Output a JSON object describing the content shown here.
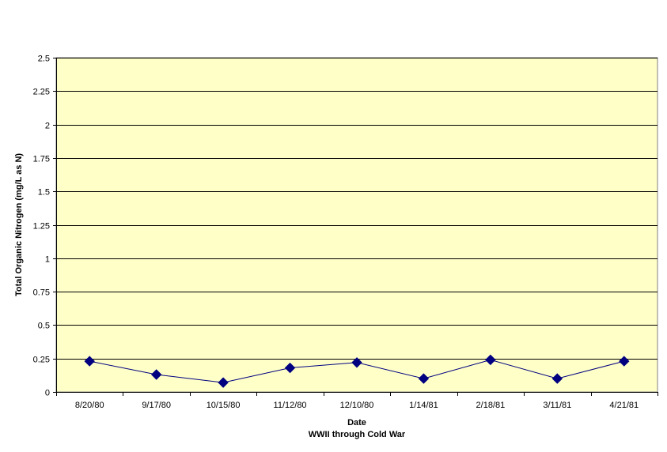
{
  "chart_data": {
    "type": "line",
    "title": "",
    "xlabel": "Date",
    "subtitle": "WWII through Cold War",
    "ylabel": "Total Organic Nitrogen (mg/L as N)",
    "ylim": [
      0,
      2.5
    ],
    "yticks": [
      "0",
      "0.25",
      "0.5",
      "0.75",
      "1",
      "1.25",
      "1.5",
      "1.75",
      "2",
      "2.25",
      "2.5"
    ],
    "categories": [
      "8/20/80",
      "9/17/80",
      "10/15/80",
      "11/12/80",
      "12/10/80",
      "1/14/81",
      "2/18/81",
      "3/11/81",
      "4/21/81"
    ],
    "series": [
      {
        "values": [
          0.23,
          0.13,
          0.07,
          0.18,
          0.22,
          0.1,
          0.24,
          0.1,
          0.23
        ]
      }
    ],
    "grid": true,
    "plot_background": "#ffffc8",
    "series_color": "#000080",
    "marker": "diamond"
  }
}
